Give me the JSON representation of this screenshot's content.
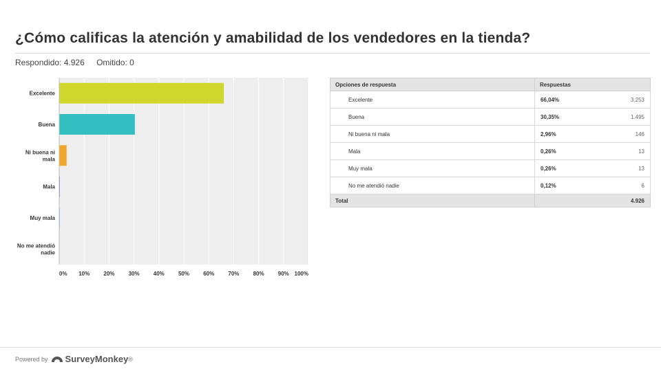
{
  "header": {
    "title": "¿Cómo calificas la atención y amabilidad de los vendedores en la tienda?",
    "answered": "Respondido: 4.926",
    "skipped": "Omitido: 0"
  },
  "chart_data": {
    "type": "bar",
    "orientation": "horizontal",
    "categories": [
      "Excelente",
      "Buena",
      "Ni buena ni mala",
      "Mala",
      "Muy mala",
      "No me atendió nadie"
    ],
    "category_display_lines": [
      [
        "Excelente"
      ],
      [
        "Buena"
      ],
      [
        "Ni buena ni",
        "mala"
      ],
      [
        "Mala"
      ],
      [
        "Muy mala"
      ],
      [
        "No me atendió",
        "nadie"
      ]
    ],
    "values": [
      66.04,
      30.35,
      2.96,
      0.26,
      0.26,
      0.12
    ],
    "colors": [
      "#cfd72c",
      "#33bfc1",
      "#f1a82a",
      "#7b7ab8",
      "#7ec3dd",
      "#a4c64b"
    ],
    "xlim": [
      0,
      100
    ],
    "ticks": [
      "0%",
      "10%",
      "20%",
      "30%",
      "40%",
      "50%",
      "60%",
      "70%",
      "80%",
      "90%",
      "100%"
    ],
    "grid": true,
    "plot_background": "#eeeeee"
  },
  "table": {
    "headers": [
      "Opciones de respuesta",
      "Respuestas"
    ],
    "rows": [
      {
        "option": "Excelente",
        "percent": "66,04%",
        "count": "3.253"
      },
      {
        "option": "Buena",
        "percent": "30,35%",
        "count": "1.495"
      },
      {
        "option": "Ni buena ni mala",
        "percent": "2,96%",
        "count": "146"
      },
      {
        "option": "Mala",
        "percent": "0,26%",
        "count": "13"
      },
      {
        "option": "Muy mala",
        "percent": "0,26%",
        "count": "13"
      },
      {
        "option": "No me atendió nadie",
        "percent": "0,12%",
        "count": "6"
      }
    ],
    "total_label": "Total",
    "total_value": "4.926"
  },
  "footer": {
    "powered_by": "Powered by",
    "brand": "SurveyMonkey",
    "brand_mark": "®",
    "logo_icon": "surveymonkey-logo-icon",
    "logo_color": "#555555"
  }
}
